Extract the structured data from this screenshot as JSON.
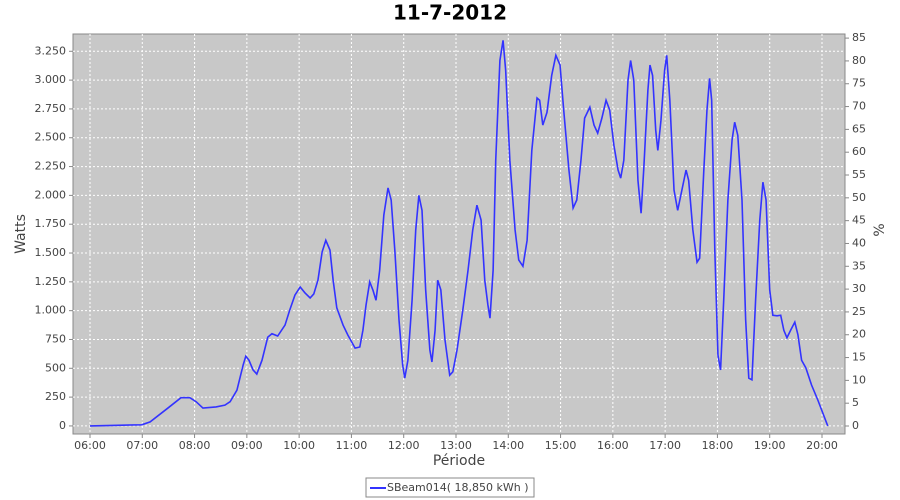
{
  "chart_data": {
    "type": "line",
    "title": "11-7-2012",
    "x_label": "Période",
    "y_label": "Watts",
    "y2_label": "%",
    "x": [
      6.0,
      6.99,
      7.15,
      7.49,
      7.74,
      7.91,
      8.03,
      8.16,
      8.41,
      8.58,
      8.68,
      8.81,
      8.93,
      8.98,
      9.04,
      9.12,
      9.19,
      9.29,
      9.4,
      9.48,
      9.59,
      9.73,
      9.82,
      9.92,
      10.02,
      10.11,
      10.21,
      10.28,
      10.36,
      10.44,
      10.51,
      10.59,
      10.65,
      10.72,
      10.84,
      10.93,
      11.07,
      11.16,
      11.22,
      11.28,
      11.35,
      11.41,
      11.47,
      11.54,
      11.62,
      11.7,
      11.76,
      11.83,
      11.91,
      11.98,
      12.02,
      12.08,
      12.16,
      12.23,
      12.29,
      12.35,
      12.42,
      12.5,
      12.54,
      12.6,
      12.65,
      12.71,
      12.79,
      12.88,
      12.94,
      13.02,
      13.13,
      13.23,
      13.32,
      13.4,
      13.48,
      13.55,
      13.61,
      13.65,
      13.71,
      13.76,
      13.84,
      13.9,
      13.95,
      14.03,
      14.13,
      14.2,
      14.28,
      14.36,
      14.45,
      14.55,
      14.6,
      14.66,
      14.74,
      14.83,
      14.91,
      14.99,
      15.06,
      15.16,
      15.24,
      15.31,
      15.39,
      15.46,
      15.56,
      15.64,
      15.71,
      15.79,
      15.87,
      15.94,
      16.02,
      16.1,
      16.15,
      16.21,
      16.29,
      16.34,
      16.4,
      16.48,
      16.54,
      16.59,
      16.67,
      16.71,
      16.76,
      16.82,
      16.86,
      16.92,
      16.99,
      17.03,
      17.09,
      17.17,
      17.24,
      17.32,
      17.4,
      17.45,
      17.53,
      17.61,
      17.66,
      17.74,
      17.8,
      17.85,
      17.89,
      17.95,
      18.01,
      18.06,
      18.12,
      18.2,
      18.28,
      18.33,
      18.39,
      18.47,
      18.54,
      18.6,
      18.66,
      18.73,
      18.81,
      18.87,
      18.93,
      19.0,
      19.06,
      19.14,
      19.21,
      19.27,
      19.33,
      19.4,
      19.48,
      19.54,
      19.61,
      19.69,
      19.8,
      19.92,
      20.03,
      20.11
    ],
    "series": [
      {
        "name": "SBeam014( 18,850 kWh )",
        "color": "#3333ff",
        "values": [
          0,
          10,
          35,
          155,
          245,
          245,
          210,
          155,
          165,
          180,
          210,
          310,
          530,
          605,
          570,
          485,
          450,
          570,
          770,
          800,
          780,
          875,
          1005,
          1135,
          1205,
          1155,
          1110,
          1145,
          1265,
          1510,
          1610,
          1525,
          1265,
          1025,
          875,
          790,
          675,
          685,
          830,
          1050,
          1250,
          1180,
          1090,
          1350,
          1830,
          2065,
          1960,
          1525,
          920,
          530,
          415,
          570,
          1090,
          1700,
          2000,
          1870,
          1180,
          660,
          555,
          830,
          1265,
          1180,
          745,
          440,
          470,
          660,
          1005,
          1350,
          1700,
          1915,
          1785,
          1265,
          1050,
          935,
          1350,
          2305,
          3170,
          3345,
          3085,
          2305,
          1700,
          1440,
          1385,
          1610,
          2390,
          2845,
          2825,
          2610,
          2720,
          3040,
          3215,
          3130,
          2740,
          2220,
          1890,
          1960,
          2305,
          2670,
          2765,
          2610,
          2540,
          2670,
          2825,
          2740,
          2435,
          2220,
          2150,
          2305,
          3000,
          3170,
          3000,
          2130,
          1845,
          2220,
          2910,
          3130,
          3040,
          2565,
          2390,
          2650,
          3085,
          3215,
          2825,
          2045,
          1870,
          2045,
          2220,
          2130,
          1700,
          1420,
          1455,
          2220,
          2740,
          3015,
          2825,
          1525,
          615,
          485,
          1090,
          1960,
          2480,
          2635,
          2520,
          1960,
          920,
          415,
          400,
          1090,
          1785,
          2115,
          1960,
          1180,
          960,
          955,
          960,
          830,
          765,
          830,
          900,
          790,
          570,
          505,
          355,
          225,
          95,
          0
        ]
      }
    ],
    "xlim": [
      5.675,
      20.44
    ],
    "xticks": [
      {
        "value": 6,
        "label": "06:00"
      },
      {
        "value": 7,
        "label": "07:00"
      },
      {
        "value": 8,
        "label": "08:00"
      },
      {
        "value": 9,
        "label": "09:00"
      },
      {
        "value": 10,
        "label": "10:00"
      },
      {
        "value": 11,
        "label": "11:00"
      },
      {
        "value": 12,
        "label": "12:00"
      },
      {
        "value": 13,
        "label": "13:00"
      },
      {
        "value": 14,
        "label": "14:00"
      },
      {
        "value": 15,
        "label": "15:00"
      },
      {
        "value": 16,
        "label": "16:00"
      },
      {
        "value": 17,
        "label": "17:00"
      },
      {
        "value": 18,
        "label": "18:00"
      },
      {
        "value": 19,
        "label": "19:00"
      },
      {
        "value": 20,
        "label": "20:00"
      }
    ],
    "ylim": [
      -70,
      3400
    ],
    "yticks": [
      0,
      250,
      500,
      750,
      {
        "value": 1000,
        "label": "1.000"
      },
      {
        "value": 1250,
        "label": "1.250"
      },
      {
        "value": 1500,
        "label": "1.500"
      },
      {
        "value": 1750,
        "label": "1.750"
      },
      {
        "value": 2000,
        "label": "2.000"
      },
      {
        "value": 2250,
        "label": "2.250"
      },
      {
        "value": 2500,
        "label": "2.500"
      },
      {
        "value": 2750,
        "label": "2.750"
      },
      {
        "value": 3000,
        "label": "3.000"
      },
      {
        "value": 3250,
        "label": "3.250"
      }
    ],
    "y2lim": [
      -1.75,
      85.9
    ],
    "y2ticks": [
      0,
      5,
      10,
      15,
      20,
      25,
      30,
      35,
      40,
      45,
      50,
      55,
      60,
      65,
      70,
      75,
      80,
      85
    ],
    "grid": true,
    "background": "#c8c8c8",
    "legend": "bottom"
  }
}
